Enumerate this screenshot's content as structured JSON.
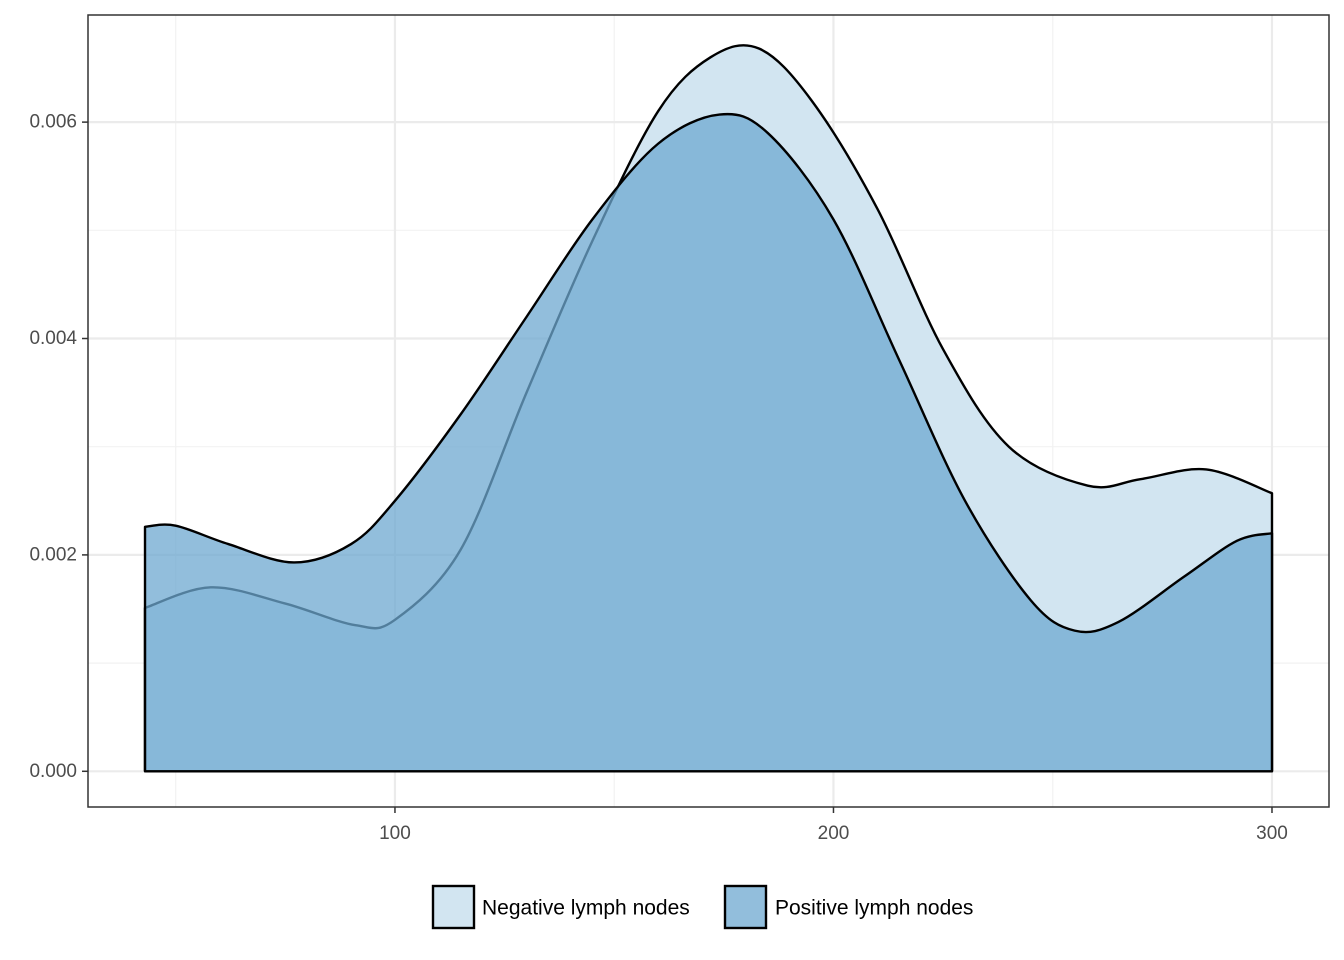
{
  "chart_data": {
    "type": "area",
    "subtype": "density",
    "title": "",
    "xlabel": "",
    "ylabel": "",
    "xlim": [
      30,
      313
    ],
    "ylim": [
      -0.00033,
      0.00699
    ],
    "x_ticks": [
      100,
      200,
      300
    ],
    "x_tick_labels": [
      "100",
      "200",
      "300"
    ],
    "y_ticks": [
      0,
      0.002,
      0.004,
      0.006
    ],
    "y_tick_labels": [
      "0.000",
      "0.002",
      "0.004",
      "0.006"
    ],
    "grid": true,
    "legend_position": "bottom",
    "series": [
      {
        "name": "Negative lymph nodes",
        "color": "#d2e5f1",
        "opacity": 1,
        "x": [
          43,
          58,
          75,
          91,
          100,
          115,
          130,
          145,
          160,
          172,
          183,
          195,
          210,
          225,
          240,
          258,
          270,
          285,
          300
        ],
        "y": [
          0.00151,
          0.0017,
          0.00155,
          0.00135,
          0.0014,
          0.00205,
          0.0035,
          0.0049,
          0.0061,
          0.0066,
          0.00668,
          0.0062,
          0.0052,
          0.0039,
          0.003,
          0.00264,
          0.0027,
          0.00279,
          0.00257
        ]
      },
      {
        "name": "Positive lymph nodes",
        "color": "#6ea8d0",
        "opacity": 0.75,
        "x": [
          43,
          50,
          62,
          77,
          90,
          100,
          115,
          130,
          145,
          160,
          174,
          185,
          200,
          215,
          230,
          245,
          255,
          265,
          280,
          292,
          300
        ],
        "y": [
          0.00226,
          0.00227,
          0.0021,
          0.00193,
          0.0021,
          0.0025,
          0.0033,
          0.0042,
          0.0051,
          0.0058,
          0.00607,
          0.0059,
          0.0051,
          0.0038,
          0.0025,
          0.00158,
          0.0013,
          0.00138,
          0.0018,
          0.00213,
          0.0022
        ]
      }
    ]
  }
}
